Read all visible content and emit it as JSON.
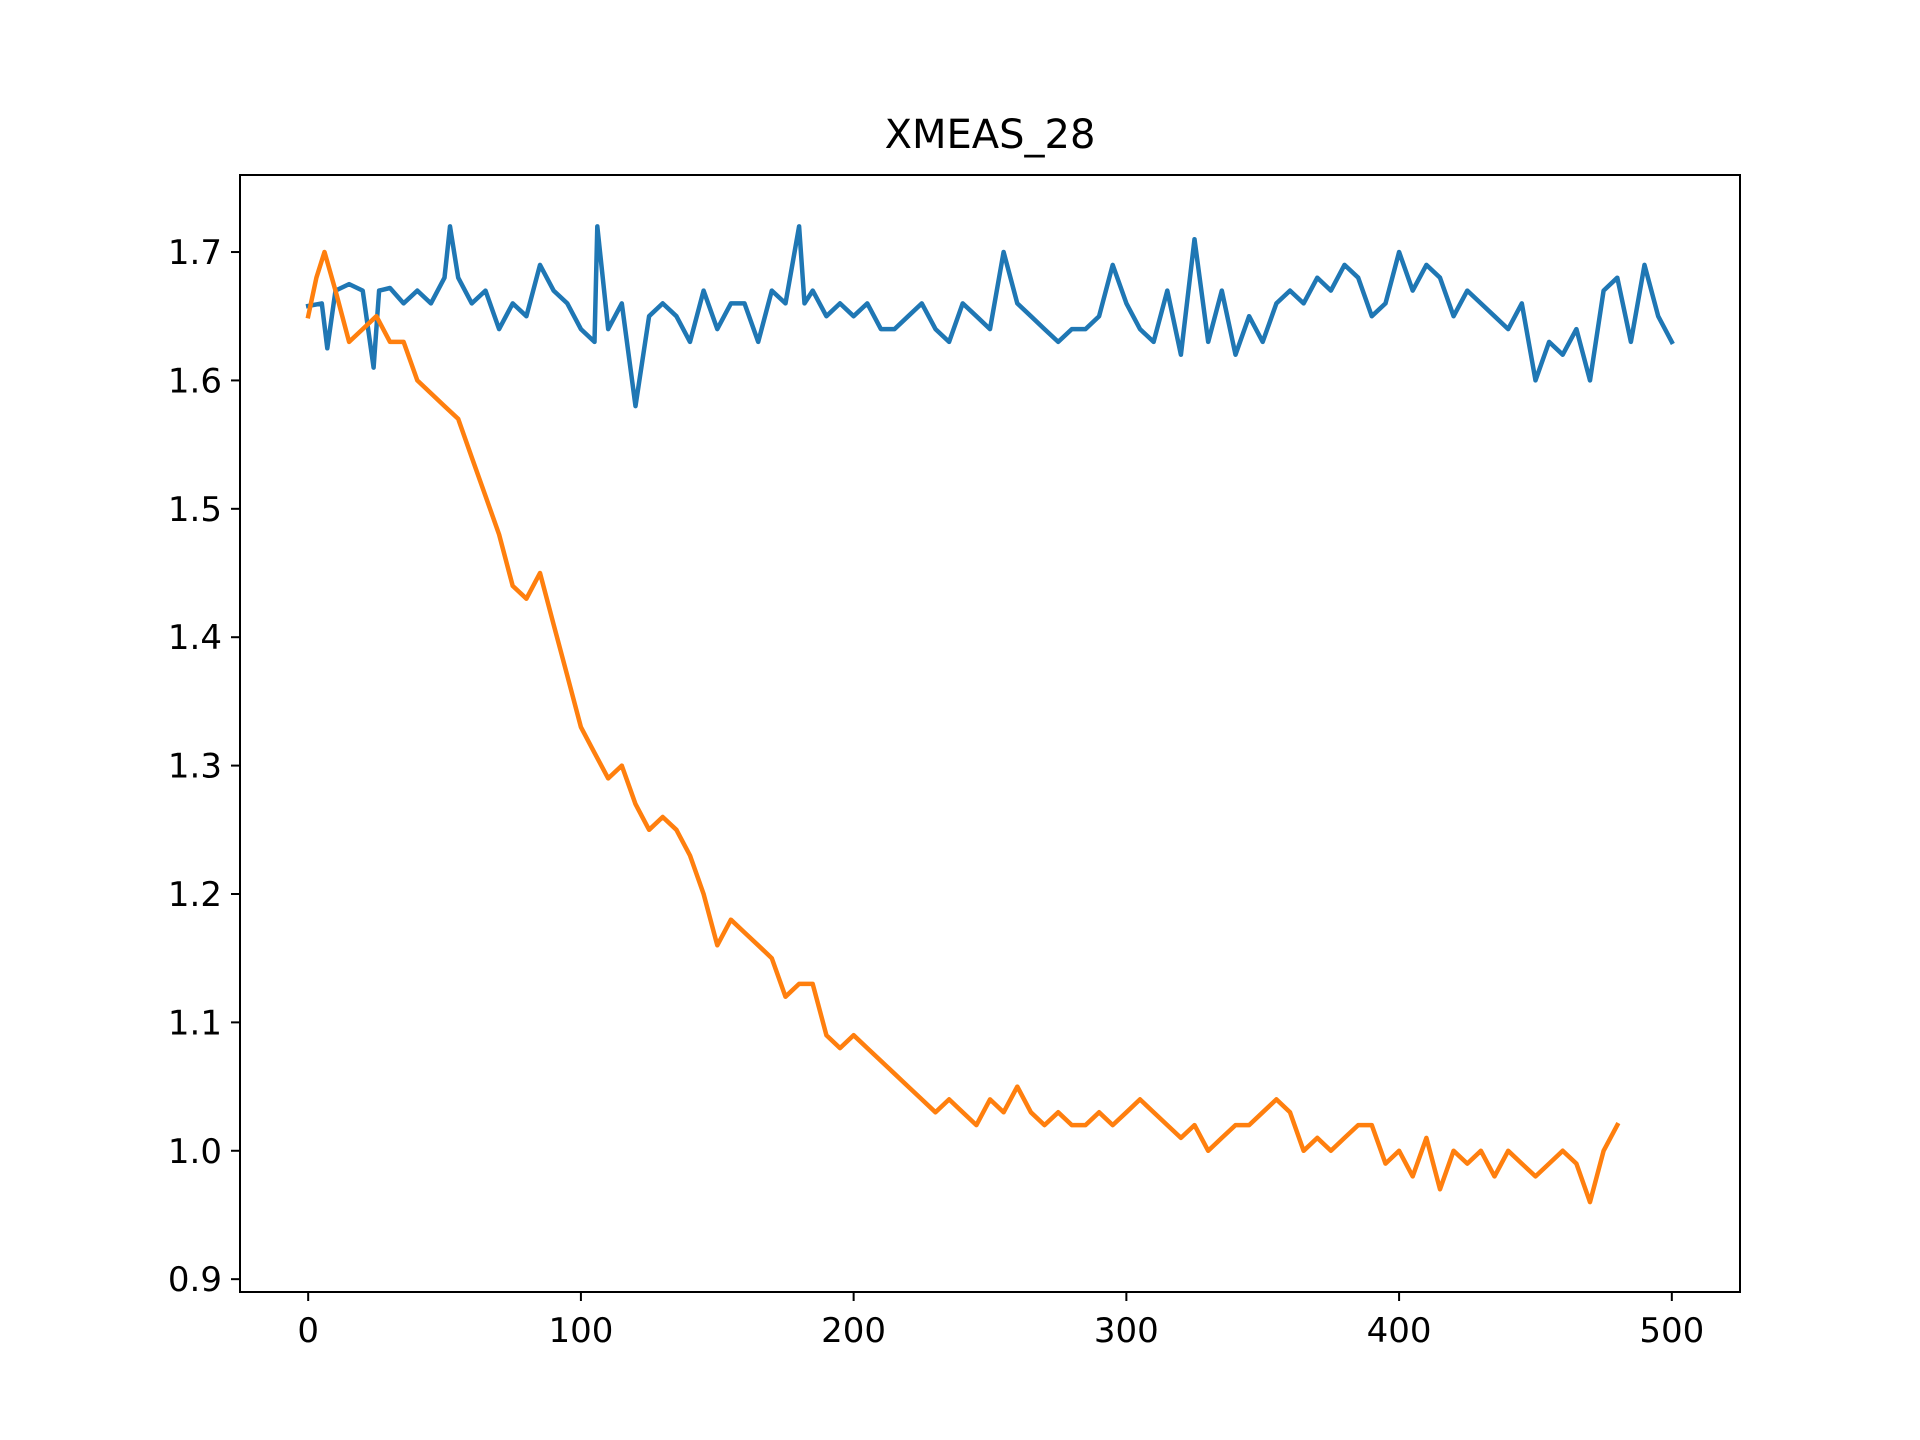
{
  "chart_data": {
    "type": "line",
    "title": "XMEAS_28",
    "xlabel": "",
    "ylabel": "",
    "xlim": [
      -25,
      525
    ],
    "ylim": [
      0.89,
      1.76
    ],
    "xticks": [
      0,
      100,
      200,
      300,
      400,
      500
    ],
    "xtick_labels": [
      "0",
      "100",
      "200",
      "300",
      "400",
      "500"
    ],
    "yticks": [
      0.9,
      1.0,
      1.1,
      1.2,
      1.3,
      1.4,
      1.5,
      1.6,
      1.7
    ],
    "ytick_labels": [
      "0.9",
      "1.0",
      "1.1",
      "1.2",
      "1.3",
      "1.4",
      "1.5",
      "1.6",
      "1.7"
    ],
    "grid": false,
    "legend": "none",
    "colors": [
      "#1f77b4",
      "#ff7f0e"
    ],
    "series": [
      {
        "x": [
          0,
          5,
          7,
          10,
          15,
          20,
          24,
          26,
          30,
          35,
          40,
          45,
          50,
          52,
          55,
          60,
          65,
          70,
          75,
          80,
          85,
          90,
          95,
          100,
          105,
          106,
          110,
          115,
          120,
          125,
          130,
          135,
          140,
          145,
          150,
          155,
          160,
          165,
          170,
          175,
          180,
          182,
          185,
          190,
          195,
          200,
          205,
          210,
          215,
          220,
          225,
          230,
          235,
          240,
          245,
          250,
          255,
          260,
          265,
          270,
          275,
          280,
          285,
          290,
          295,
          300,
          305,
          310,
          315,
          320,
          325,
          330,
          335,
          340,
          345,
          350,
          355,
          360,
          365,
          370,
          375,
          380,
          385,
          390,
          395,
          400,
          405,
          410,
          415,
          420,
          425,
          430,
          435,
          440,
          445,
          450,
          455,
          460,
          465,
          470,
          475,
          480,
          485,
          490,
          495,
          500
        ],
        "y": [
          1.658,
          1.66,
          1.625,
          1.67,
          1.675,
          1.67,
          1.61,
          1.67,
          1.672,
          1.66,
          1.67,
          1.66,
          1.68,
          1.72,
          1.68,
          1.66,
          1.67,
          1.64,
          1.66,
          1.65,
          1.69,
          1.67,
          1.66,
          1.64,
          1.63,
          1.72,
          1.64,
          1.66,
          1.58,
          1.65,
          1.66,
          1.65,
          1.63,
          1.67,
          1.64,
          1.66,
          1.66,
          1.63,
          1.67,
          1.66,
          1.72,
          1.66,
          1.67,
          1.65,
          1.66,
          1.65,
          1.66,
          1.64,
          1.64,
          1.65,
          1.66,
          1.64,
          1.63,
          1.66,
          1.65,
          1.64,
          1.7,
          1.66,
          1.65,
          1.64,
          1.63,
          1.64,
          1.64,
          1.65,
          1.69,
          1.66,
          1.64,
          1.63,
          1.67,
          1.62,
          1.71,
          1.63,
          1.67,
          1.62,
          1.65,
          1.63,
          1.66,
          1.67,
          1.66,
          1.68,
          1.67,
          1.69,
          1.68,
          1.65,
          1.66,
          1.7,
          1.67,
          1.69,
          1.68,
          1.65,
          1.67,
          1.66,
          1.65,
          1.64,
          1.66,
          1.6,
          1.63,
          1.62,
          1.64,
          1.6,
          1.67,
          1.68,
          1.63,
          1.69,
          1.65,
          1.63
        ]
      },
      {
        "x": [
          0,
          3,
          6,
          10,
          15,
          20,
          25,
          30,
          35,
          40,
          45,
          50,
          55,
          60,
          65,
          70,
          75,
          80,
          85,
          90,
          95,
          100,
          105,
          110,
          115,
          120,
          125,
          130,
          135,
          140,
          145,
          150,
          155,
          160,
          165,
          170,
          175,
          180,
          185,
          190,
          195,
          200,
          205,
          210,
          215,
          220,
          225,
          230,
          235,
          240,
          245,
          250,
          255,
          260,
          265,
          270,
          275,
          280,
          285,
          290,
          295,
          300,
          305,
          310,
          315,
          320,
          325,
          330,
          335,
          340,
          345,
          350,
          355,
          360,
          365,
          370,
          375,
          380,
          385,
          390,
          395,
          400,
          405,
          410,
          415,
          420,
          425,
          430,
          435,
          440,
          445,
          450,
          455,
          460,
          465,
          470,
          475,
          480
        ],
        "y": [
          1.65,
          1.68,
          1.7,
          1.67,
          1.63,
          1.64,
          1.65,
          1.63,
          1.63,
          1.6,
          1.59,
          1.58,
          1.57,
          1.54,
          1.51,
          1.48,
          1.44,
          1.43,
          1.45,
          1.41,
          1.37,
          1.33,
          1.31,
          1.29,
          1.3,
          1.27,
          1.25,
          1.26,
          1.25,
          1.23,
          1.2,
          1.16,
          1.18,
          1.17,
          1.16,
          1.15,
          1.12,
          1.13,
          1.13,
          1.09,
          1.08,
          1.09,
          1.08,
          1.07,
          1.06,
          1.05,
          1.04,
          1.03,
          1.04,
          1.03,
          1.02,
          1.04,
          1.03,
          1.05,
          1.03,
          1.02,
          1.03,
          1.02,
          1.02,
          1.03,
          1.02,
          1.03,
          1.04,
          1.03,
          1.02,
          1.01,
          1.02,
          1.0,
          1.01,
          1.02,
          1.02,
          1.03,
          1.04,
          1.03,
          1.0,
          1.01,
          1.0,
          1.01,
          1.02,
          1.02,
          0.99,
          1.0,
          0.98,
          1.01,
          0.97,
          1.0,
          0.99,
          1.0,
          0.98,
          1.0,
          0.99,
          0.98,
          0.99,
          1.0,
          0.99,
          0.96,
          1.0,
          1.02
        ]
      }
    ]
  }
}
